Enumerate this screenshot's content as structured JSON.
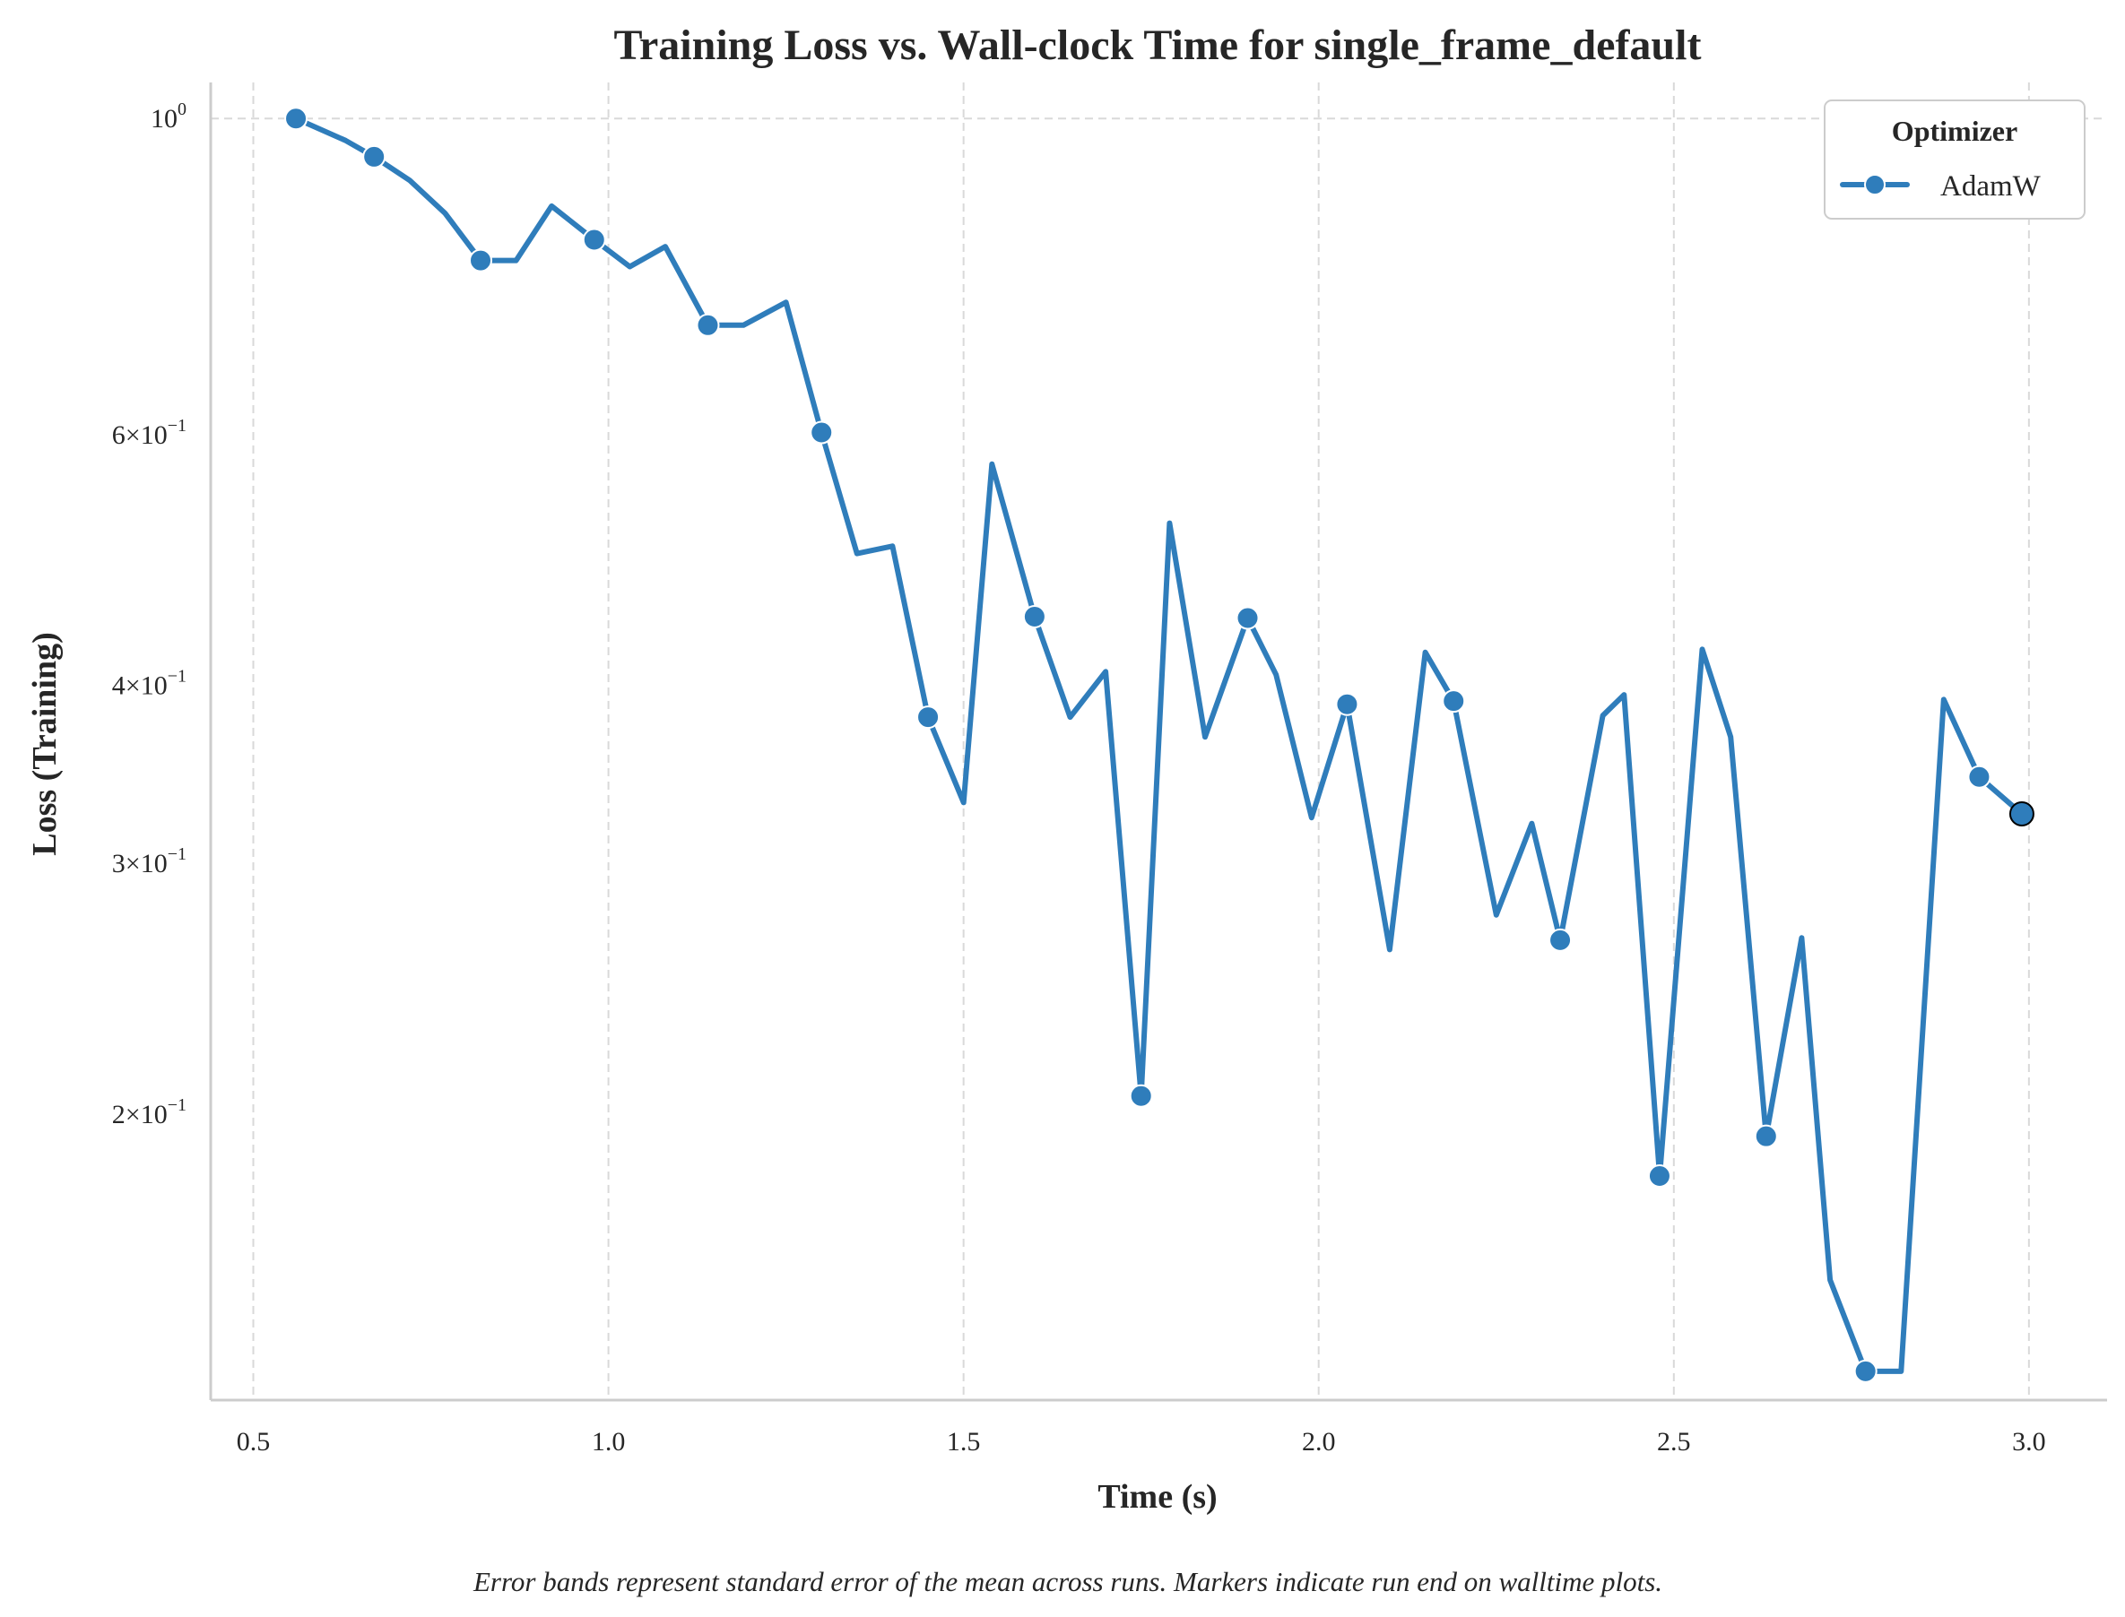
{
  "chart_data": {
    "type": "line",
    "title": "Training Loss vs. Wall-clock Time for single_frame_default",
    "xlabel": "Time (s)",
    "ylabel": "Loss (Training)",
    "caption": "Error bands represent standard error of the mean across runs. Markers indicate run end on walltime plots.",
    "xlim": [
      0.44,
      3.11
    ],
    "ylim": [
      0.126,
      1.06
    ],
    "yscale": "log",
    "grid": true,
    "legend": {
      "title": "Optimizer",
      "placement": "top-right"
    },
    "x_ticks": [
      {
        "value": 0.5,
        "label": "0.5"
      },
      {
        "value": 1.0,
        "label": "1.0"
      },
      {
        "value": 1.5,
        "label": "1.5"
      },
      {
        "value": 2.0,
        "label": "2.0"
      },
      {
        "value": 2.5,
        "label": "2.5"
      },
      {
        "value": 3.0,
        "label": "3.0"
      }
    ],
    "y_ticks": [
      {
        "value": 1.0,
        "mant": "",
        "exp": "0"
      },
      {
        "value": 0.6,
        "mant": "6",
        "exp": "−1"
      },
      {
        "value": 0.4,
        "mant": "4",
        "exp": "−1"
      },
      {
        "value": 0.3,
        "mant": "3",
        "exp": "−1"
      },
      {
        "value": 0.2,
        "mant": "2",
        "exp": "−1"
      }
    ],
    "series": [
      {
        "name": "AdamW",
        "color": "#2f7dbb",
        "x": [
          0.56,
          0.63,
          0.67,
          0.72,
          0.77,
          0.82,
          0.87,
          0.92,
          0.98,
          1.03,
          1.08,
          1.14,
          1.19,
          1.25,
          1.3,
          1.35,
          1.4,
          1.45,
          1.5,
          1.54,
          1.6,
          1.65,
          1.7,
          1.75,
          1.79,
          1.84,
          1.9,
          1.94,
          1.99,
          2.04,
          2.1,
          2.15,
          2.19,
          2.25,
          2.3,
          2.34,
          2.4,
          2.43,
          2.48,
          2.54,
          2.58,
          2.63,
          2.68,
          2.72,
          2.77,
          2.82,
          2.88,
          2.93,
          2.99
        ],
        "y": [
          1.0,
          0.965,
          0.94,
          0.905,
          0.858,
          0.795,
          0.795,
          0.868,
          0.822,
          0.787,
          0.813,
          0.716,
          0.716,
          0.743,
          0.602,
          0.495,
          0.501,
          0.38,
          0.331,
          0.572,
          0.447,
          0.38,
          0.409,
          0.206,
          0.52,
          0.368,
          0.446,
          0.407,
          0.323,
          0.388,
          0.261,
          0.422,
          0.39,
          0.276,
          0.32,
          0.265,
          0.381,
          0.394,
          0.181,
          0.424,
          0.368,
          0.193,
          0.266,
          0.153,
          0.132,
          0.132,
          0.391,
          0.345,
          0.325
        ],
        "markers": [
          {
            "x": 0.56,
            "y": 1.0
          },
          {
            "x": 0.67,
            "y": 0.94
          },
          {
            "x": 0.82,
            "y": 0.795
          },
          {
            "x": 0.98,
            "y": 0.822
          },
          {
            "x": 1.14,
            "y": 0.716
          },
          {
            "x": 1.3,
            "y": 0.602
          },
          {
            "x": 1.45,
            "y": 0.38
          },
          {
            "x": 1.6,
            "y": 0.447
          },
          {
            "x": 1.75,
            "y": 0.206
          },
          {
            "x": 1.9,
            "y": 0.446
          },
          {
            "x": 2.04,
            "y": 0.388
          },
          {
            "x": 2.19,
            "y": 0.39
          },
          {
            "x": 2.34,
            "y": 0.265
          },
          {
            "x": 2.48,
            "y": 0.181
          },
          {
            "x": 2.63,
            "y": 0.193
          },
          {
            "x": 2.77,
            "y": 0.132
          },
          {
            "x": 2.93,
            "y": 0.345
          }
        ],
        "end_marker": {
          "x": 2.99,
          "y": 0.325
        }
      }
    ]
  }
}
